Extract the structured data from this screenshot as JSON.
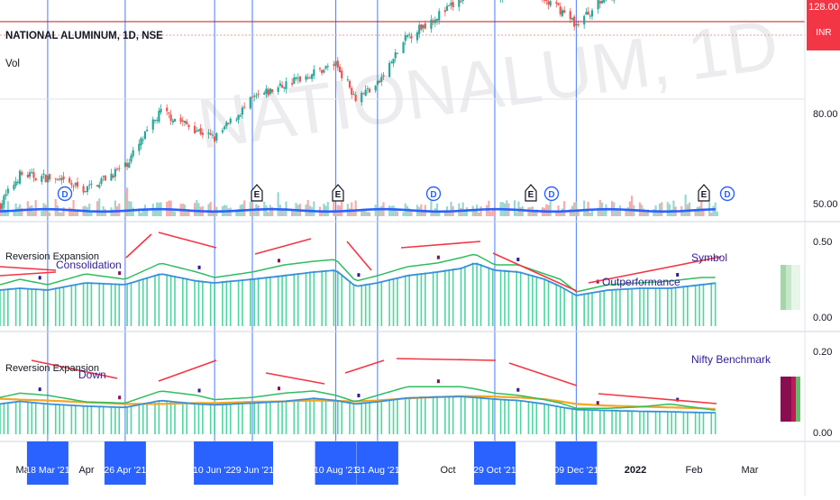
{
  "header": {
    "symbol_title": "NATIONAL ALUMINUM, 1D, NSE",
    "volume_label": "Vol",
    "watermark": "NATIONALUM, 1D",
    "last_price_tag": "128.00",
    "currency_tag": "INR"
  },
  "panes": {
    "price_axis_labels": [
      "80.00",
      "50.00"
    ],
    "indicator1_title": "Reversion Expansion",
    "indicator1_axis_labels": [
      "0.50",
      "0.00"
    ],
    "indicator1_notes": [
      "Consolidation",
      "Outperformance",
      "Symbol"
    ],
    "indicator2_title": "Reversion Expansion",
    "indicator2_axis_labels": [
      "0.20",
      "0.00"
    ],
    "indicator2_notes": [
      "Down",
      "Nifty Benchmark"
    ]
  },
  "event_markers": [
    "D",
    "E",
    "E",
    "D",
    "E",
    "D",
    "E",
    "D"
  ],
  "time_axis": {
    "labels": [
      "Mar",
      "Apr",
      "J",
      "A",
      "Oct",
      "D",
      "2022",
      "Feb",
      "Mar"
    ],
    "date_tags": [
      "18 Mar '21",
      "26 Apr '21",
      "10 Jun '21",
      "29 Jun '21",
      "10 Aug '21",
      "31 Aug '21",
      "29 Oct '21",
      "09 Dec '21"
    ]
  },
  "colors": {
    "up": "#26a69a",
    "down": "#ef5350",
    "volume_ma": "#2962ff",
    "vertical_line": "#2962ff",
    "trend_line": "#f23645",
    "indicator_bar_green": "#2ecf8f",
    "indicator_bar_blue": "#5b8de8",
    "line_blue": "#3b8fd9",
    "line_green": "#2ebd5f",
    "line_orange": "#f5a623",
    "note_text": "#311b92",
    "date_tag_bg": "#2962ff"
  },
  "chart_data": {
    "type": "candlestick",
    "symbol": "NATIONAL ALUMINUM",
    "interval": "1D",
    "exchange": "NSE",
    "price_axis_ticks": [
      50,
      80
    ],
    "last_price": 128.0,
    "x_range": [
      "2021-02-22",
      "2022-03-10"
    ],
    "price_path_anchors": {
      "dates": [
        "2021-02-22",
        "2021-03-04",
        "2021-03-18",
        "2021-04-06",
        "2021-04-26",
        "2021-05-14",
        "2021-06-01",
        "2021-06-10",
        "2021-06-29",
        "2021-07-15",
        "2021-07-30",
        "2021-08-10",
        "2021-08-20",
        "2021-08-31",
        "2021-09-15",
        "2021-09-30",
        "2021-10-12",
        "2021-10-19",
        "2021-10-29",
        "2021-11-10",
        "2021-11-23",
        "2021-12-01",
        "2021-12-09",
        "2021-12-25",
        "2022-01-10",
        "2022-01-25",
        "2022-02-10",
        "2022-02-18"
      ],
      "close": [
        49,
        59,
        58,
        54,
        62,
        80,
        74,
        71,
        84,
        89,
        93,
        96,
        85,
        89,
        105,
        112,
        117,
        132,
        118,
        123,
        117,
        114,
        109,
        119,
        121,
        125,
        129,
        128
      ]
    },
    "indicator1": {
      "title": "Reversion Expansion",
      "y_range": [
        0,
        0.5
      ],
      "blue_line": [
        0.2,
        0.21,
        0.2,
        0.24,
        0.23,
        0.29,
        0.25,
        0.24,
        0.26,
        0.28,
        0.3,
        0.31,
        0.22,
        0.24,
        0.28,
        0.3,
        0.32,
        0.35,
        0.31,
        0.3,
        0.26,
        0.22,
        0.17,
        0.2,
        0.21,
        0.21,
        0.23,
        0.24
      ],
      "green_line": [
        0.23,
        0.26,
        0.23,
        0.29,
        0.26,
        0.35,
        0.3,
        0.27,
        0.3,
        0.34,
        0.36,
        0.37,
        0.25,
        0.28,
        0.33,
        0.35,
        0.38,
        0.4,
        0.34,
        0.34,
        0.29,
        0.26,
        0.19,
        0.23,
        0.24,
        0.25,
        0.27,
        0.27
      ]
    },
    "indicator2": {
      "title": "Reversion Expansion",
      "y_range": [
        0,
        0.2
      ],
      "blue_line": [
        0.07,
        0.076,
        0.07,
        0.065,
        0.062,
        0.078,
        0.07,
        0.068,
        0.072,
        0.076,
        0.083,
        0.078,
        0.07,
        0.075,
        0.084,
        0.086,
        0.087,
        0.085,
        0.081,
        0.078,
        0.07,
        0.063,
        0.057,
        0.055,
        0.053,
        0.052,
        0.05,
        0.05
      ],
      "green_line": [
        0.085,
        0.095,
        0.09,
        0.075,
        0.072,
        0.1,
        0.09,
        0.08,
        0.085,
        0.095,
        0.1,
        0.09,
        0.075,
        0.09,
        0.11,
        0.11,
        0.11,
        0.105,
        0.095,
        0.09,
        0.08,
        0.072,
        0.06,
        0.06,
        0.063,
        0.07,
        0.06,
        0.055
      ],
      "orange_line": [
        0.082,
        0.08,
        0.078,
        0.074,
        0.07,
        0.07,
        0.072,
        0.072,
        0.075,
        0.076,
        0.078,
        0.077,
        0.076,
        0.078,
        0.083,
        0.086,
        0.088,
        0.088,
        0.087,
        0.085,
        0.081,
        0.076,
        0.07,
        0.066,
        0.064,
        0.062,
        0.06,
        0.058
      ]
    }
  }
}
